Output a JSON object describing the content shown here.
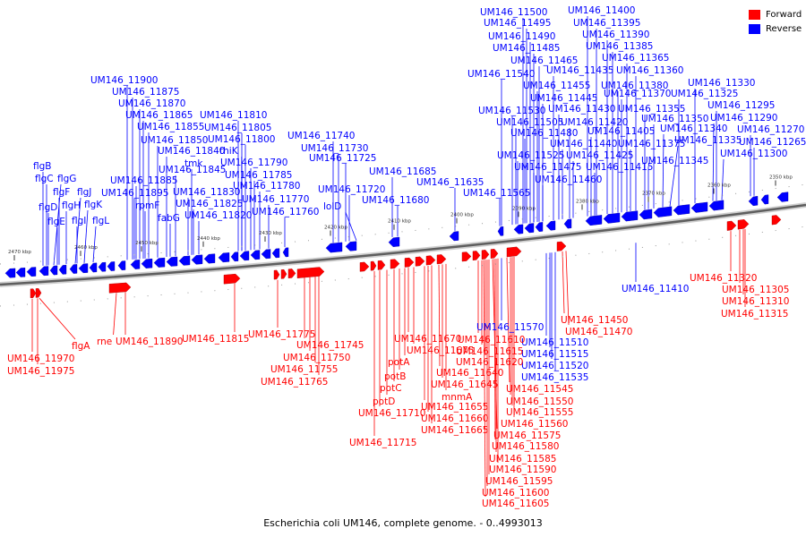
{
  "caption": "Escherichia coli UM146, complete genome. - 0..4993013",
  "legend": {
    "forward": {
      "label": "Forward",
      "color": "#ff0000"
    },
    "reverse": {
      "label": "Reverse",
      "color": "#0000ff"
    }
  },
  "colors": {
    "forward": "#ff0000",
    "reverse": "#0000ff",
    "backbone": "#8a8a8a"
  },
  "ticks": [
    {
      "label": "2470 kbp"
    },
    {
      "label": "2460 kbp"
    },
    {
      "label": "2450 kbp"
    },
    {
      "label": "2440 kbp"
    },
    {
      "label": "2430 kbp"
    },
    {
      "label": "2420 kbp"
    },
    {
      "label": "2410 kbp"
    },
    {
      "label": "2400 kbp"
    },
    {
      "label": "2390 kbp"
    },
    {
      "label": "2380 kbp"
    },
    {
      "label": "2370 kbp"
    },
    {
      "label": "2360 kbp"
    },
    {
      "label": "2350 kbp"
    }
  ],
  "reverse_labels": [
    "UM146_11500",
    "UM146_11495",
    "UM146_11490",
    "UM146_11485",
    "UM146_11465",
    "UM146_11540",
    "UM146_11400",
    "UM146_11395",
    "UM146_11390",
    "UM146_11385",
    "UM146_11365",
    "UM146_11435",
    "UM146_11360",
    "UM146_11455",
    "UM146_11380",
    "UM146_11330",
    "UM146_11445",
    "UM146_11370",
    "UM146_11325",
    "UM146_11430",
    "UM146_11530",
    "UM146_11355",
    "UM146_11295",
    "UM146_11350",
    "UM146_11420",
    "UM146_11505",
    "UM146_11290",
    "UM146_11340",
    "UM146_11480",
    "UM146_11405",
    "UM146_11270",
    "UM146_11335",
    "UM146_11440",
    "UM146_11375",
    "UM146_11265",
    "UM146_11525",
    "UM146_11425",
    "UM146_11300",
    "UM146_11345",
    "UM146_11475",
    "UM146_11415",
    "UM146_11460",
    "UM146_11565",
    "UM146_11635",
    "UM146_11685",
    "UM146_11680",
    "UM146_11740",
    "UM146_11730",
    "UM146_11725",
    "UM146_11720",
    "lolD",
    "UM146_11900",
    "UM146_11875",
    "UM146_11870",
    "UM146_11865",
    "UM146_11810",
    "UM146_11855",
    "UM146_11805",
    "UM146_11850",
    "UM146_11800",
    "UM146_11840",
    "thiK",
    "tmk",
    "UM146_11845",
    "UM146_11790",
    "UM146_11785",
    "UM146_11885",
    "UM146_11895",
    "UM146_11830",
    "UM146_11780",
    "UM146_11825",
    "UM146_11770",
    "UM146_11820",
    "UM146_11760",
    "rpmF",
    "fabG",
    "flgB",
    "flgC",
    "flgG",
    "flgF",
    "flgD",
    "flgH",
    "flgJ",
    "flgK",
    "flgE",
    "flgI",
    "flgL",
    "UM146_11410",
    "UM146_11570",
    "UM146_11510",
    "UM146_11515",
    "UM146_11520",
    "UM146_11535"
  ],
  "forward_labels": [
    "UM146_11970",
    "UM146_11975",
    "flgA",
    "rne",
    "UM146_11890",
    "UM146_11815",
    "UM146_11775",
    "UM146_11745",
    "UM146_11750",
    "UM146_11755",
    "UM146_11765",
    "UM146_11670",
    "UM146_11675",
    "potA",
    "potB",
    "potC",
    "potD",
    "UM146_11710",
    "UM146_11715",
    "UM146_11640",
    "UM146_11645",
    "mnmA",
    "UM146_11655",
    "UM146_11660",
    "UM146_11665",
    "UM146_11610",
    "UM146_11615",
    "UM146_11620",
    "UM146_11545",
    "UM146_11550",
    "UM146_11555",
    "UM146_11560",
    "UM146_11575",
    "UM146_11580",
    "UM146_11585",
    "UM146_11590",
    "UM146_11595",
    "UM146_11600",
    "UM146_11605",
    "UM146_11450",
    "UM146_11470",
    "UM146_11320",
    "UM146_11305",
    "UM146_11310",
    "UM146_11315"
  ]
}
